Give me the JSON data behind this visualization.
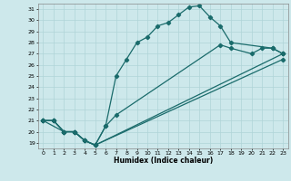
{
  "xlabel": "Humidex (Indice chaleur)",
  "xlim": [
    -0.5,
    23.5
  ],
  "ylim": [
    18.5,
    31.5
  ],
  "yticks": [
    19,
    20,
    21,
    22,
    23,
    24,
    25,
    26,
    27,
    28,
    29,
    30,
    31
  ],
  "xticks": [
    0,
    1,
    2,
    3,
    4,
    5,
    6,
    7,
    8,
    9,
    10,
    11,
    12,
    13,
    14,
    15,
    16,
    17,
    18,
    19,
    20,
    21,
    22,
    23
  ],
  "bg_color": "#cde8eb",
  "grid_color": "#b0d4d8",
  "line_color": "#1a6b6b",
  "series": [
    {
      "x": [
        0,
        1,
        2,
        3,
        4,
        5,
        6,
        7,
        8,
        9,
        10,
        11,
        12,
        13,
        14,
        15,
        16,
        17,
        18,
        22,
        23
      ],
      "y": [
        21.0,
        21.0,
        20.0,
        20.0,
        19.2,
        18.8,
        20.5,
        25.0,
        26.5,
        28.0,
        28.5,
        29.5,
        29.8,
        30.5,
        31.2,
        31.3,
        30.3,
        29.5,
        28.0,
        27.5,
        27.0
      ]
    },
    {
      "x": [
        0,
        2,
        3,
        4,
        5,
        6,
        7,
        17,
        18,
        20,
        21,
        22,
        23
      ],
      "y": [
        21.0,
        20.0,
        20.0,
        19.2,
        18.8,
        20.5,
        21.5,
        27.8,
        27.5,
        27.0,
        27.5,
        27.5,
        27.0
      ]
    },
    {
      "x": [
        0,
        1,
        2,
        3,
        4,
        5,
        23
      ],
      "y": [
        21.0,
        21.0,
        20.0,
        20.0,
        19.2,
        18.8,
        27.0
      ]
    },
    {
      "x": [
        0,
        1,
        2,
        3,
        4,
        5,
        23
      ],
      "y": [
        21.0,
        21.0,
        20.0,
        20.0,
        19.2,
        18.8,
        26.5
      ]
    }
  ]
}
